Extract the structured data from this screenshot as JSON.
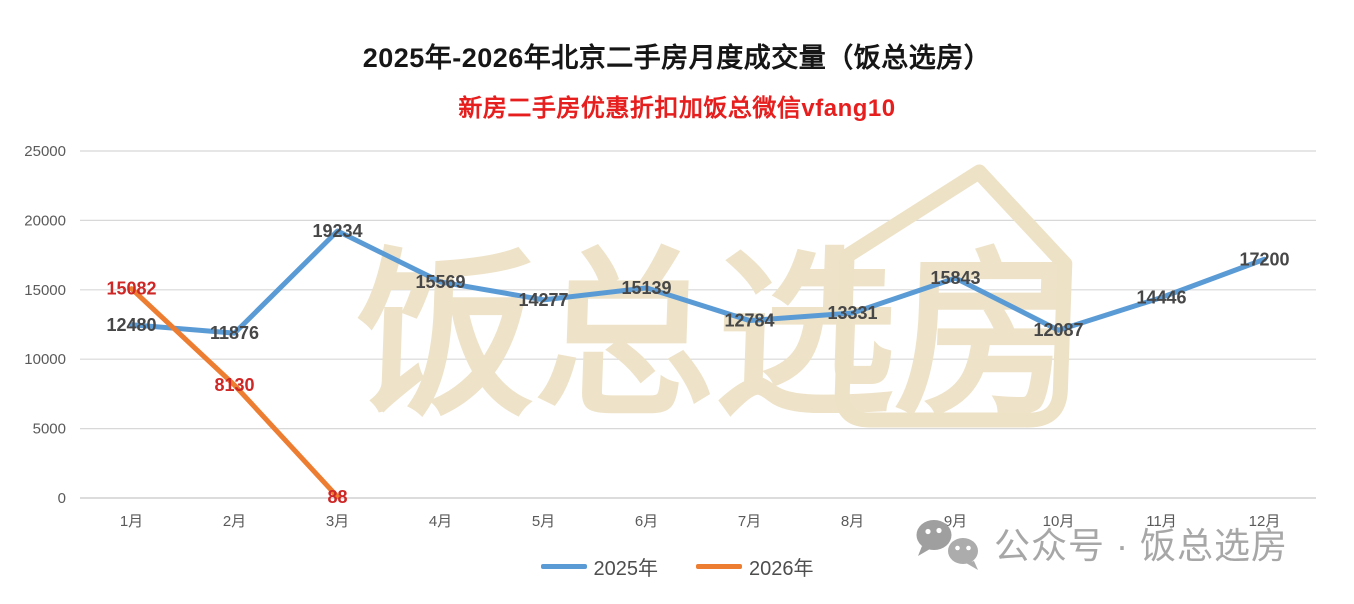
{
  "title": "2025年-2026年北京二手房月度成交量（饭总选房）",
  "subtitle": "新房二手房优惠折扣加饭总微信vfang10",
  "colors": {
    "series_2025": "#5b9bd5",
    "series_2026": "#ed7d31",
    "label_2025": "#474747",
    "label_2026": "#cf2626",
    "subtitle_red": "#e71e1e",
    "gridline": "#d8d8d8",
    "axis_line": "#c7c7c7",
    "axis_text": "#5a5a5a",
    "watermark_beige": "#eee2c6",
    "watermark_gray": "#a7a7a7"
  },
  "chart_data": {
    "type": "line",
    "title": "2025年-2026年北京二手房月度成交量（饭总选房）",
    "xlabel": "",
    "ylabel": "",
    "categories": [
      "1月",
      "2月",
      "3月",
      "4月",
      "5月",
      "6月",
      "7月",
      "8月",
      "9月",
      "10月",
      "11月",
      "12月"
    ],
    "series": [
      {
        "name": "2025年",
        "color_key": "series_2025",
        "label_color_key": "label_2025",
        "values": [
          12480,
          11876,
          19234,
          15569,
          14277,
          15139,
          12784,
          13331,
          15843,
          12087,
          14446,
          17200
        ]
      },
      {
        "name": "2026年",
        "color_key": "series_2026",
        "label_color_key": "label_2026",
        "values": [
          15082,
          8130,
          88
        ]
      }
    ],
    "y_ticks": [
      0,
      5000,
      10000,
      15000,
      20000,
      25000
    ],
    "ylim": [
      0,
      25000
    ],
    "grid": true,
    "legend_position": "bottom"
  },
  "watermark": {
    "center_text": "饭总选房",
    "footer_text": "公众号 · 饭总选房"
  }
}
